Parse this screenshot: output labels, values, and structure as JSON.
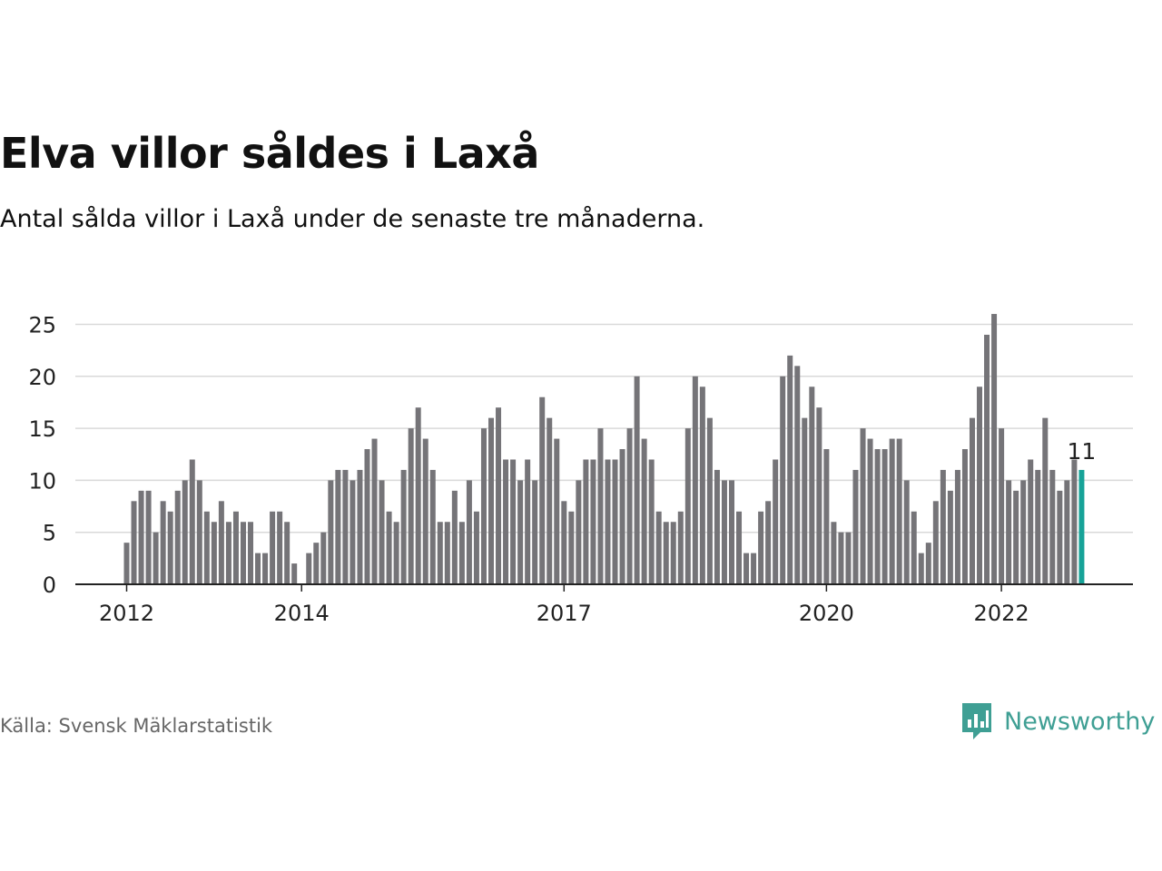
{
  "title": "Elva villor såldes i Laxå",
  "subtitle": "Antal sålda villor i Laxå under de senaste tre månaderna.",
  "source": "Källa: Svensk Mäklarstatistik",
  "brand": {
    "name": "Newsworthy",
    "icon": "bar-chart-speech-bubble-icon"
  },
  "colors": {
    "bar": "#757478",
    "highlight": "#17a398",
    "grid": "#d9d9d9",
    "axis": "#222222",
    "brand": "#3f9f94"
  },
  "chart_data": {
    "type": "bar",
    "ylim": [
      0,
      26
    ],
    "yticks": [
      0,
      5,
      10,
      15,
      20,
      25
    ],
    "xticks": [
      {
        "label": "2012",
        "index": 0
      },
      {
        "label": "2014",
        "index": 24
      },
      {
        "label": "2017",
        "index": 60
      },
      {
        "label": "2020",
        "index": 96
      },
      {
        "label": "2022",
        "index": 120
      }
    ],
    "grid": true,
    "highlight_index": 131,
    "highlight_label": "11",
    "series": [
      {
        "values": [
          4,
          8,
          9,
          9,
          5,
          8,
          7,
          9,
          10,
          12,
          10,
          7,
          6,
          8,
          6,
          7,
          6,
          6,
          3,
          3,
          7,
          7,
          6,
          2,
          0,
          3,
          4,
          5,
          10,
          11,
          11,
          10,
          11,
          13,
          14,
          10,
          7,
          6,
          11,
          15,
          17,
          14,
          11,
          6,
          6,
          9,
          6,
          10,
          7,
          15,
          16,
          17,
          12,
          12,
          10,
          12,
          10,
          18,
          16,
          14,
          8,
          7,
          10,
          12,
          12,
          15,
          12,
          12,
          13,
          15,
          20,
          14,
          12,
          7,
          6,
          6,
          7,
          15,
          20,
          19,
          16,
          11,
          10,
          10,
          7,
          3,
          3,
          7,
          8,
          12,
          20,
          22,
          21,
          16,
          19,
          17,
          13,
          6,
          5,
          5,
          11,
          15,
          14,
          13,
          13,
          14,
          14,
          10,
          7,
          3,
          4,
          8,
          11,
          9,
          11,
          13,
          16,
          19,
          24,
          26,
          15,
          10,
          9,
          10,
          12,
          11,
          16,
          11,
          9,
          10,
          12,
          11
        ]
      }
    ]
  }
}
